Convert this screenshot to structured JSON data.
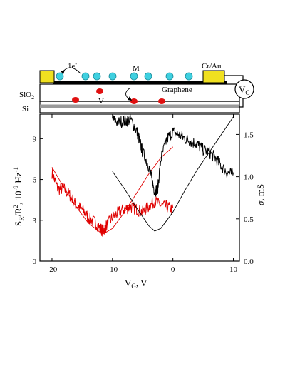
{
  "device": {
    "labels": {
      "electron": "1e",
      "electron_sup": "-",
      "molecule": "M",
      "contact": "Cr/Au",
      "graphene": "Graphene",
      "vacancy": "V",
      "oxide_main": "SiO",
      "oxide_sub": "2",
      "substrate": "Si",
      "gate_main": "V",
      "gate_sub": "G"
    },
    "colors": {
      "molecule": "#3fd0e0",
      "vacancy": "#e01010",
      "contact": "#f0e020",
      "graphene": "#000000",
      "substrate_stripe": "#9a9a9a"
    }
  },
  "chart_data": {
    "type": "line",
    "x": {
      "label_main": "V",
      "label_sub": "G",
      "label_tail": ", V",
      "lim": [
        -22,
        11
      ],
      "ticks": [
        -20,
        -10,
        0,
        10
      ],
      "tick_labels": [
        "-20",
        "-10",
        "0",
        "10"
      ]
    },
    "y_left": {
      "label": "S_R/R^2, 10^-9 Hz^-1",
      "lim": [
        0,
        10.8
      ],
      "ticks": [
        0,
        3,
        6,
        9
      ],
      "tick_labels": [
        "0",
        "3",
        "6",
        "9"
      ]
    },
    "y_right": {
      "label": "σ, mS",
      "lim": [
        0,
        1.74
      ],
      "ticks": [
        0,
        0.5,
        1.0,
        1.5
      ],
      "tick_labels": [
        "0.0",
        "0.5",
        "1.0",
        "1.5"
      ]
    },
    "series": [
      {
        "color": "#e00000",
        "axis": "left",
        "kind": "noisy",
        "points": [
          [
            -20,
            6.5
          ],
          [
            -19,
            5.3
          ],
          [
            -18,
            5.3
          ],
          [
            -17,
            4.8
          ],
          [
            -16,
            4.1
          ],
          [
            -15,
            3.8
          ],
          [
            -14,
            3.2
          ],
          [
            -13,
            2.9
          ],
          [
            -12,
            2.4
          ],
          [
            -11.5,
            2.2
          ],
          [
            -11,
            2.6
          ],
          [
            -10,
            3.2
          ],
          [
            -9,
            3.6
          ],
          [
            -8,
            3.8
          ],
          [
            -7,
            4.0
          ],
          [
            -6,
            3.8
          ],
          [
            -5,
            3.6
          ],
          [
            -4,
            4.0
          ],
          [
            -3,
            4.4
          ],
          [
            -2,
            4.1
          ],
          [
            -1,
            4.0
          ],
          [
            0,
            3.8
          ]
        ]
      },
      {
        "color": "#e00000",
        "axis": "left",
        "kind": "smooth",
        "points": [
          [
            -20,
            6.9
          ],
          [
            -18,
            5.4
          ],
          [
            -16,
            4.0
          ],
          [
            -14,
            2.8
          ],
          [
            -12,
            2.1
          ],
          [
            -11.5,
            2.0
          ],
          [
            -10,
            2.4
          ],
          [
            -8,
            3.6
          ],
          [
            -6,
            5.0
          ],
          [
            -4,
            6.4
          ],
          [
            -2,
            7.6
          ],
          [
            0,
            8.4
          ]
        ]
      },
      {
        "color": "#000000",
        "axis": "left",
        "kind": "noisy",
        "points": [
          [
            -10,
            10.4
          ],
          [
            -9,
            10.2
          ],
          [
            -8,
            10.3
          ],
          [
            -7,
            10.4
          ],
          [
            -6,
            9.6
          ],
          [
            -5.5,
            8.8
          ],
          [
            -5,
            8.0
          ],
          [
            -4,
            7.0
          ],
          [
            -3.5,
            6.0
          ],
          [
            -3,
            5.1
          ],
          [
            -2.5,
            5.4
          ],
          [
            -2,
            7.5
          ],
          [
            -1,
            9.0
          ],
          [
            0,
            9.5
          ],
          [
            1,
            9.3
          ],
          [
            2,
            9.0
          ],
          [
            3,
            8.8
          ],
          [
            4,
            8.6
          ],
          [
            5,
            8.2
          ],
          [
            6,
            8.0
          ],
          [
            7,
            7.6
          ],
          [
            8,
            7.0
          ],
          [
            9,
            6.5
          ],
          [
            10,
            6.4
          ]
        ]
      },
      {
        "color": "#000000",
        "axis": "left",
        "kind": "smooth",
        "points": [
          [
            -10,
            6.6
          ],
          [
            -8,
            5.3
          ],
          [
            -6,
            3.9
          ],
          [
            -4,
            2.6
          ],
          [
            -3,
            2.2
          ],
          [
            -2,
            2.4
          ],
          [
            0,
            3.6
          ],
          [
            2,
            5.2
          ],
          [
            4,
            6.7
          ],
          [
            6,
            8.0
          ],
          [
            8,
            9.3
          ],
          [
            10,
            10.6
          ]
        ]
      }
    ]
  }
}
